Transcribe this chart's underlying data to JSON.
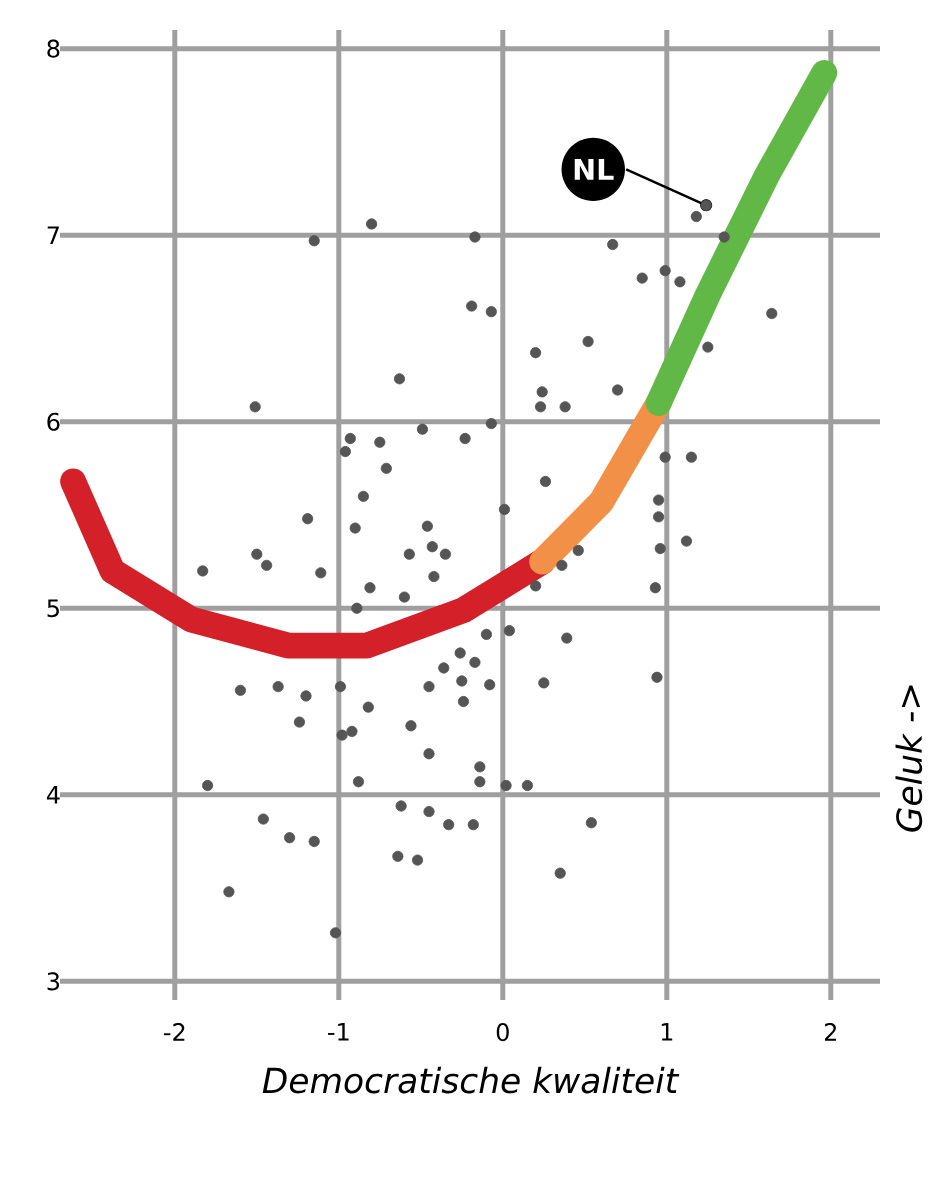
{
  "chart_data": {
    "type": "scatter",
    "xlabel": "Democratische kwaliteit",
    "ylabel": "Geluk ->",
    "xlim": [
      -2.7,
      2.3
    ],
    "ylim": [
      2.9,
      8.1
    ],
    "xticks": [
      -2,
      -1,
      0,
      1,
      2
    ],
    "yticks": [
      3,
      4,
      5,
      6,
      7,
      8
    ],
    "grid": true,
    "annotations": [
      {
        "text": "NL",
        "x": 1.24,
        "y": 7.16
      }
    ],
    "series": [
      {
        "color": "#555555",
        "marker": "circle",
        "x": [
          -0.8,
          -1.15,
          -0.17,
          -0.19,
          -0.63,
          -1.51,
          -0.49,
          -0.23,
          -0.93,
          -0.96,
          -0.75,
          -0.71,
          -0.85,
          -1.19,
          -0.9,
          -0.46,
          -0.57,
          -0.43,
          -0.35,
          -1.5,
          -1.44,
          -1.83,
          -1.11,
          -0.42,
          1.24,
          1.18,
          0.67,
          1.35,
          0.85,
          0.99,
          1.08,
          -0.07,
          1.64,
          0.52,
          0.2,
          1.25,
          0.24,
          0.23,
          0.38,
          0.7,
          -0.07,
          0.99,
          1.15,
          0.26,
          0.01,
          0.95,
          0.95,
          1.12,
          0.96,
          0.46,
          0.36,
          0.2,
          0.93,
          -0.81,
          -0.6,
          -0.89,
          -0.26,
          -0.36,
          -0.25,
          -0.24,
          -0.45,
          -0.82,
          -0.99,
          -1.2,
          -1.37,
          -1.6,
          -1.24,
          -0.92,
          -0.98,
          -0.56,
          -0.45,
          -0.14,
          -0.14,
          -1.8,
          -0.88,
          -0.62,
          -0.45,
          -1.46,
          -0.33,
          -0.18,
          -1.3,
          -1.15,
          -0.64,
          -0.52,
          -1.67,
          -1.02,
          -0.1,
          0.04,
          0.39,
          -0.17,
          -0.08,
          0.25,
          0.94,
          0.02,
          0.15,
          0.54,
          0.35
        ],
        "values": [
          7.06,
          6.97,
          6.99,
          6.62,
          6.23,
          6.08,
          5.96,
          5.91,
          5.91,
          5.84,
          5.89,
          5.75,
          5.6,
          5.48,
          5.43,
          5.44,
          5.29,
          5.33,
          5.29,
          5.29,
          5.23,
          5.2,
          5.19,
          5.17,
          7.16,
          7.1,
          6.95,
          6.99,
          6.77,
          6.81,
          6.75,
          6.59,
          6.58,
          6.43,
          6.37,
          6.4,
          6.16,
          6.08,
          6.08,
          6.17,
          5.99,
          5.81,
          5.81,
          5.68,
          5.53,
          5.58,
          5.49,
          5.36,
          5.32,
          5.31,
          5.23,
          5.12,
          5.11,
          5.11,
          5.06,
          5.0,
          4.76,
          4.68,
          4.61,
          4.5,
          4.58,
          4.47,
          4.58,
          4.53,
          4.58,
          4.56,
          4.39,
          4.34,
          4.32,
          4.37,
          4.22,
          4.15,
          4.07,
          4.05,
          4.07,
          3.94,
          3.91,
          3.87,
          3.84,
          3.84,
          3.77,
          3.75,
          3.67,
          3.65,
          3.48,
          3.26,
          4.86,
          4.88,
          4.84,
          4.71,
          4.59,
          4.6,
          4.63,
          4.05,
          4.05,
          3.85,
          3.58
        ]
      },
      {
        "type": "line",
        "color": "#d32029",
        "marker": "none",
        "x": [
          -2.62,
          -2.38,
          -1.9,
          -1.31,
          -0.83,
          -0.24,
          0.24
        ],
        "values": [
          5.68,
          5.2,
          4.94,
          4.8,
          4.8,
          4.99,
          5.25
        ]
      },
      {
        "type": "line",
        "color": "#f39048",
        "marker": "none",
        "x": [
          0.24,
          0.6,
          0.95
        ],
        "values": [
          5.25,
          5.57,
          6.1
        ]
      },
      {
        "type": "line",
        "color": "#62b846",
        "marker": "none",
        "x": [
          0.95,
          1.25,
          1.61,
          1.96
        ],
        "values": [
          6.1,
          6.68,
          7.32,
          7.87
        ]
      }
    ]
  }
}
